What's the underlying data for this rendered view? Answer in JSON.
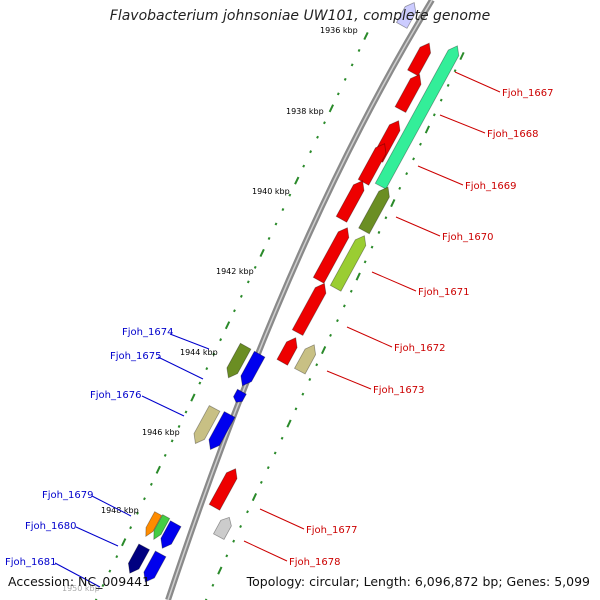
{
  "title": "Flavobacterium johnsoniae UW101, complete genome",
  "footer": {
    "accession": "Accession: NC_009441",
    "topology": "Topology: circular; Length: 6,096,872 bp; Genes: 5,099"
  },
  "colors": {
    "backbone": "#8a8a8a",
    "tick": "#2a8a2a",
    "forward_label": "#cc0000",
    "reverse_label": "#0000cc",
    "red": "#ee0000",
    "teal": "#33ee99",
    "olive": "#6b8e23",
    "lime": "#9acd32",
    "khaki": "#c8c084",
    "blue": "#0000ee",
    "navy": "#000080",
    "orange": "#ff8c00",
    "green": "#44cc44",
    "gray": "#cccccc"
  },
  "scale_labels": [
    "1936 kbp",
    "1938 kbp",
    "1940 kbp",
    "1942 kbp",
    "1944 kbp",
    "1946 kbp",
    "1948 kbp",
    "1950 kbp"
  ],
  "forward_labels": [
    "Fjoh_1667",
    "Fjoh_1668",
    "Fjoh_1669",
    "Fjoh_1670",
    "Fjoh_1671",
    "Fjoh_1672",
    "Fjoh_1673",
    "Fjoh_1677",
    "Fjoh_1678"
  ],
  "reverse_labels": [
    "Fjoh_1674",
    "Fjoh_1675",
    "Fjoh_1676",
    "Fjoh_1679",
    "Fjoh_1680",
    "Fjoh_1681"
  ]
}
